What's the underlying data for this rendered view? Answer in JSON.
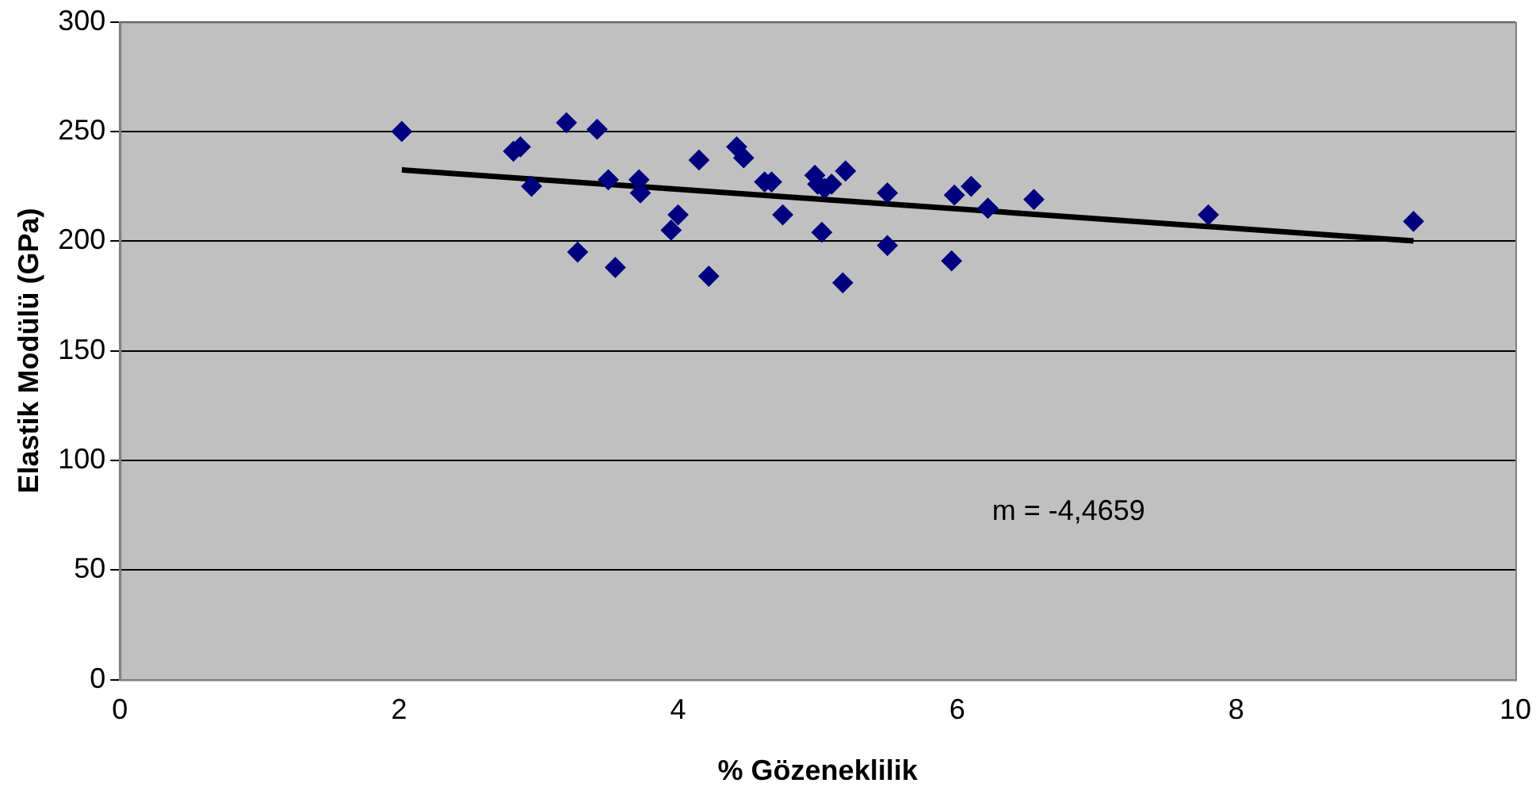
{
  "chart_data": {
    "type": "scatter",
    "xlabel": "% Gözeneklilik",
    "ylabel": "Elastik Modülü (GPa)",
    "xlim": [
      0,
      10
    ],
    "xticks": [
      0,
      2,
      4,
      6,
      8,
      10
    ],
    "ylim": [
      0,
      300
    ],
    "yticks": [
      0,
      50,
      100,
      150,
      200,
      250,
      300
    ],
    "grid": "y",
    "marker": "diamond",
    "annotations": [
      "m = -4,4659"
    ],
    "series": [
      {
        "type": "scatter",
        "color": "#000080",
        "x": [
          2.02,
          2.82,
          2.87,
          2.95,
          3.2,
          3.28,
          3.42,
          3.5,
          3.55,
          3.72,
          3.73,
          3.95,
          4.0,
          4.15,
          4.22,
          4.42,
          4.47,
          4.62,
          4.67,
          4.75,
          4.98,
          5.0,
          5.03,
          5.05,
          5.1,
          5.18,
          5.2,
          5.5,
          5.5,
          5.96,
          5.98,
          6.1,
          6.22,
          6.55,
          7.8,
          9.27
        ],
        "values": [
          250,
          241,
          243,
          225,
          254,
          195,
          251,
          228,
          188,
          228,
          222,
          205,
          212,
          237,
          184,
          243,
          238,
          227,
          227,
          212,
          230,
          226,
          204,
          224,
          226,
          181,
          232,
          222,
          198,
          191,
          221,
          225,
          215,
          219,
          212,
          209
        ]
      },
      {
        "type": "line",
        "color": "#000000",
        "marker": "none",
        "x": [
          2.02,
          9.27
        ],
        "values": [
          232.5,
          200.1
        ]
      }
    ]
  }
}
